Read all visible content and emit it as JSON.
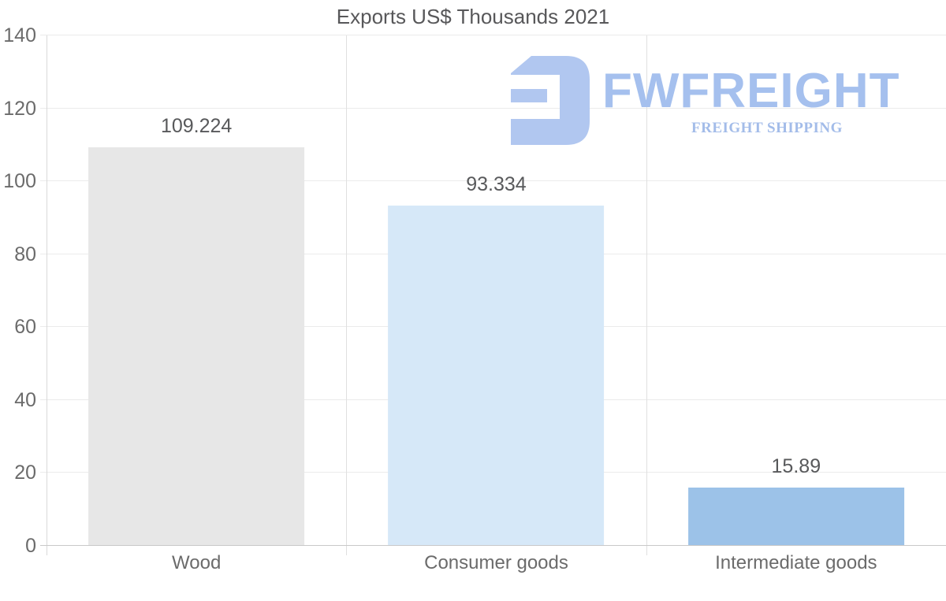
{
  "page": {
    "background": "#ffffff"
  },
  "chart_data": {
    "type": "bar",
    "title": "Exports US$ Thousands 2021",
    "categories": [
      "Wood",
      "Consumer goods",
      "Intermediate goods"
    ],
    "values": [
      109.224,
      93.334,
      15.89
    ],
    "value_labels": [
      "109.224",
      "93.334",
      "15.89"
    ],
    "bar_colors": [
      "#e7e7e7",
      "#d6e8f8",
      "#9cc2e8"
    ],
    "xlabel": "",
    "ylabel": "",
    "ylim": [
      0,
      140
    ],
    "yticks": [
      0,
      20,
      40,
      60,
      80,
      100,
      120,
      140
    ],
    "grid": "horizontal gridlines plus vertical category separators",
    "legend": "none"
  },
  "watermark": {
    "brand": "FWFREIGHT",
    "tagline": "FREIGHT SHIPPING",
    "icon": "fwfreight-logo-mark",
    "brand_color": "#a5c0ee",
    "icon_color": "#b1c7f0",
    "tagline_color": "#a3bce9"
  },
  "colors": {
    "title_text": "#58585a",
    "axis_label_text": "#6b6b6b",
    "value_label_text": "#58595b",
    "gridline": "#ebebeb",
    "baseline": "#c9c9c9",
    "separator": "#e0e0e0",
    "axis_line": "#d9d9d9"
  }
}
